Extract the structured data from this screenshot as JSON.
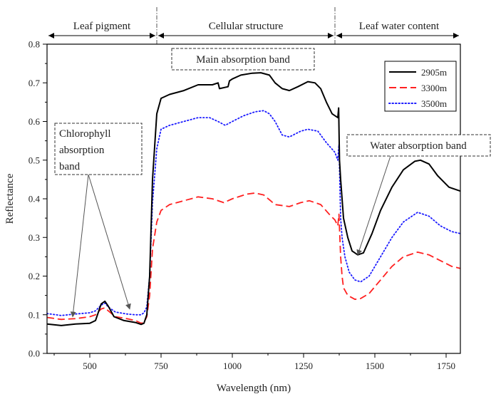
{
  "chart_data": {
    "type": "line",
    "xlabel": "Wavelength (nm)",
    "ylabel": "Reflectance",
    "xlim": [
      350,
      1800
    ],
    "ylim": [
      0.0,
      0.8
    ],
    "x_ticks": [
      500,
      750,
      1000,
      1250,
      1500,
      1750
    ],
    "y_ticks": [
      0.0,
      0.1,
      0.2,
      0.3,
      0.4,
      0.5,
      0.6,
      0.7,
      0.8
    ],
    "grid": false,
    "legend": {
      "position": "top-right",
      "entries": [
        "2905m",
        "3300m",
        "3500m"
      ]
    },
    "regions": [
      {
        "label": "Leaf pigment",
        "from": 350,
        "to": 735
      },
      {
        "label": "Cellular structure",
        "from": 735,
        "to": 1360
      },
      {
        "label": "Leaf water content",
        "from": 1360,
        "to": 1800
      }
    ],
    "annotations": [
      {
        "id": "main",
        "lines": [
          "Main absorption band"
        ]
      },
      {
        "id": "chlorophyll",
        "lines": [
          "Chlorophyll",
          "absorption",
          "band"
        ],
        "arrows_to": [
          [
            440,
            0.095
          ],
          [
            640,
            0.115
          ]
        ]
      },
      {
        "id": "water",
        "lines": [
          "Water absorption band"
        ],
        "arrows_to": [
          [
            1440,
            0.255
          ]
        ]
      }
    ],
    "series": [
      {
        "name": "2905m",
        "color": "#000000",
        "dash": "solid",
        "points": [
          [
            350,
            0.076
          ],
          [
            400,
            0.072
          ],
          [
            450,
            0.076
          ],
          [
            500,
            0.078
          ],
          [
            520,
            0.085
          ],
          [
            540,
            0.128
          ],
          [
            553,
            0.135
          ],
          [
            565,
            0.122
          ],
          [
            585,
            0.095
          ],
          [
            620,
            0.085
          ],
          [
            660,
            0.08
          ],
          [
            680,
            0.075
          ],
          [
            690,
            0.078
          ],
          [
            700,
            0.1
          ],
          [
            710,
            0.2
          ],
          [
            720,
            0.45
          ],
          [
            735,
            0.62
          ],
          [
            750,
            0.66
          ],
          [
            780,
            0.67
          ],
          [
            830,
            0.68
          ],
          [
            880,
            0.695
          ],
          [
            930,
            0.695
          ],
          [
            950,
            0.7
          ],
          [
            955,
            0.685
          ],
          [
            985,
            0.69
          ],
          [
            990,
            0.705
          ],
          [
            1000,
            0.71
          ],
          [
            1030,
            0.72
          ],
          [
            1070,
            0.725
          ],
          [
            1100,
            0.726
          ],
          [
            1130,
            0.72
          ],
          [
            1150,
            0.7
          ],
          [
            1175,
            0.685
          ],
          [
            1200,
            0.68
          ],
          [
            1230,
            0.69
          ],
          [
            1265,
            0.703
          ],
          [
            1290,
            0.7
          ],
          [
            1310,
            0.685
          ],
          [
            1330,
            0.65
          ],
          [
            1350,
            0.62
          ],
          [
            1370,
            0.61
          ],
          [
            1373,
            0.635
          ],
          [
            1376,
            0.5
          ],
          [
            1380,
            0.45
          ],
          [
            1385,
            0.4
          ],
          [
            1390,
            0.35
          ],
          [
            1405,
            0.3
          ],
          [
            1420,
            0.265
          ],
          [
            1440,
            0.255
          ],
          [
            1460,
            0.26
          ],
          [
            1490,
            0.31
          ],
          [
            1520,
            0.37
          ],
          [
            1560,
            0.43
          ],
          [
            1600,
            0.475
          ],
          [
            1640,
            0.497
          ],
          [
            1660,
            0.5
          ],
          [
            1690,
            0.49
          ],
          [
            1720,
            0.46
          ],
          [
            1760,
            0.43
          ],
          [
            1800,
            0.42
          ]
        ]
      },
      {
        "name": "3300m",
        "color": "#ff2020",
        "dash": "dashed",
        "points": [
          [
            350,
            0.093
          ],
          [
            400,
            0.088
          ],
          [
            450,
            0.09
          ],
          [
            500,
            0.095
          ],
          [
            520,
            0.1
          ],
          [
            540,
            0.115
          ],
          [
            553,
            0.118
          ],
          [
            565,
            0.11
          ],
          [
            590,
            0.095
          ],
          [
            630,
            0.09
          ],
          [
            660,
            0.085
          ],
          [
            680,
            0.078
          ],
          [
            690,
            0.08
          ],
          [
            700,
            0.095
          ],
          [
            710,
            0.15
          ],
          [
            720,
            0.27
          ],
          [
            735,
            0.34
          ],
          [
            750,
            0.37
          ],
          [
            780,
            0.385
          ],
          [
            830,
            0.395
          ],
          [
            880,
            0.405
          ],
          [
            930,
            0.4
          ],
          [
            970,
            0.39
          ],
          [
            1000,
            0.4
          ],
          [
            1050,
            0.412
          ],
          [
            1080,
            0.415
          ],
          [
            1110,
            0.41
          ],
          [
            1150,
            0.385
          ],
          [
            1200,
            0.38
          ],
          [
            1240,
            0.39
          ],
          [
            1270,
            0.395
          ],
          [
            1310,
            0.385
          ],
          [
            1340,
            0.36
          ],
          [
            1360,
            0.345
          ],
          [
            1370,
            0.33
          ],
          [
            1374,
            0.36
          ],
          [
            1380,
            0.25
          ],
          [
            1385,
            0.2
          ],
          [
            1390,
            0.17
          ],
          [
            1405,
            0.15
          ],
          [
            1430,
            0.14
          ],
          [
            1450,
            0.142
          ],
          [
            1480,
            0.155
          ],
          [
            1520,
            0.19
          ],
          [
            1560,
            0.225
          ],
          [
            1600,
            0.25
          ],
          [
            1650,
            0.262
          ],
          [
            1690,
            0.255
          ],
          [
            1730,
            0.24
          ],
          [
            1770,
            0.225
          ],
          [
            1800,
            0.22
          ]
        ]
      },
      {
        "name": "3500m",
        "color": "#1a1aff",
        "dash": "dotted",
        "points": [
          [
            350,
            0.103
          ],
          [
            400,
            0.098
          ],
          [
            450,
            0.102
          ],
          [
            500,
            0.105
          ],
          [
            520,
            0.11
          ],
          [
            540,
            0.125
          ],
          [
            553,
            0.13
          ],
          [
            565,
            0.12
          ],
          [
            590,
            0.107
          ],
          [
            630,
            0.102
          ],
          [
            660,
            0.1
          ],
          [
            680,
            0.1
          ],
          [
            690,
            0.105
          ],
          [
            700,
            0.12
          ],
          [
            710,
            0.2
          ],
          [
            720,
            0.39
          ],
          [
            735,
            0.53
          ],
          [
            750,
            0.58
          ],
          [
            780,
            0.59
          ],
          [
            830,
            0.6
          ],
          [
            880,
            0.61
          ],
          [
            920,
            0.61
          ],
          [
            950,
            0.6
          ],
          [
            975,
            0.59
          ],
          [
            1000,
            0.6
          ],
          [
            1040,
            0.615
          ],
          [
            1080,
            0.625
          ],
          [
            1110,
            0.628
          ],
          [
            1130,
            0.62
          ],
          [
            1150,
            0.6
          ],
          [
            1175,
            0.565
          ],
          [
            1200,
            0.56
          ],
          [
            1240,
            0.575
          ],
          [
            1265,
            0.58
          ],
          [
            1300,
            0.575
          ],
          [
            1330,
            0.545
          ],
          [
            1360,
            0.52
          ],
          [
            1370,
            0.5
          ],
          [
            1374,
            0.54
          ],
          [
            1380,
            0.35
          ],
          [
            1385,
            0.3
          ],
          [
            1395,
            0.25
          ],
          [
            1410,
            0.21
          ],
          [
            1430,
            0.19
          ],
          [
            1450,
            0.185
          ],
          [
            1480,
            0.2
          ],
          [
            1520,
            0.25
          ],
          [
            1560,
            0.3
          ],
          [
            1600,
            0.34
          ],
          [
            1650,
            0.365
          ],
          [
            1690,
            0.355
          ],
          [
            1730,
            0.33
          ],
          [
            1770,
            0.315
          ],
          [
            1800,
            0.31
          ]
        ]
      }
    ]
  }
}
